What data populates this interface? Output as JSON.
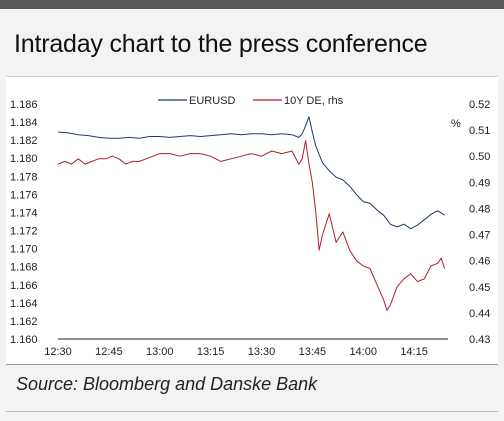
{
  "title": "Intraday chart to the press conference",
  "source": "Source: Bloomberg and Danske Bank",
  "chart_data": {
    "type": "line",
    "x_tick_labels": [
      "12:30",
      "12:45",
      "13:00",
      "13:15",
      "13:30",
      "13:45",
      "14:00",
      "14:15"
    ],
    "xlim": [
      "12:30",
      "14:25"
    ],
    "ylim_left": [
      1.16,
      1.186
    ],
    "y_left_ticks": [
      "1.186",
      "1.184",
      "1.182",
      "1.180",
      "1.178",
      "1.176",
      "1.174",
      "1.172",
      "1.170",
      "1.168",
      "1.166",
      "1.164",
      "1.162",
      "1.160"
    ],
    "ylim_right": [
      0.43,
      0.52
    ],
    "y_right_ticks": [
      "0.52",
      "0.51",
      "0.50",
      "0.49",
      "0.48",
      "0.47",
      "0.46",
      "0.45",
      "0.44",
      "0.43"
    ],
    "y_right_unit": "%",
    "legend_position": "top",
    "grid": false,
    "series": [
      {
        "name": "EURUSD",
        "axis": "left",
        "color": "#1f3b63",
        "points": [
          [
            "12:30",
            1.1829
          ],
          [
            "12:33",
            1.1828
          ],
          [
            "12:36",
            1.1826
          ],
          [
            "12:39",
            1.1825
          ],
          [
            "12:42",
            1.1823
          ],
          [
            "12:45",
            1.1822
          ],
          [
            "12:48",
            1.1822
          ],
          [
            "12:51",
            1.1823
          ],
          [
            "12:54",
            1.1822
          ],
          [
            "12:57",
            1.1824
          ],
          [
            "13:00",
            1.1824
          ],
          [
            "13:03",
            1.1823
          ],
          [
            "13:06",
            1.1824
          ],
          [
            "13:09",
            1.1825
          ],
          [
            "13:12",
            1.1824
          ],
          [
            "13:15",
            1.1825
          ],
          [
            "13:18",
            1.1826
          ],
          [
            "13:21",
            1.1827
          ],
          [
            "13:24",
            1.1826
          ],
          [
            "13:27",
            1.1827
          ],
          [
            "13:30",
            1.1827
          ],
          [
            "13:33",
            1.1826
          ],
          [
            "13:36",
            1.1827
          ],
          [
            "13:39",
            1.1826
          ],
          [
            "13:41",
            1.1823
          ],
          [
            "13:42",
            1.1827
          ],
          [
            "13:43",
            1.1836
          ],
          [
            "13:44",
            1.1846
          ],
          [
            "13:45",
            1.1829
          ],
          [
            "13:46",
            1.1814
          ],
          [
            "13:47",
            1.1804
          ],
          [
            "13:48",
            1.1795
          ],
          [
            "13:50",
            1.1786
          ],
          [
            "13:52",
            1.1779
          ],
          [
            "13:54",
            1.1776
          ],
          [
            "13:56",
            1.1769
          ],
          [
            "13:58",
            1.176
          ],
          [
            "14:00",
            1.1752
          ],
          [
            "14:02",
            1.175
          ],
          [
            "14:04",
            1.1743
          ],
          [
            "14:06",
            1.1737
          ],
          [
            "14:08",
            1.1727
          ],
          [
            "14:10",
            1.1724
          ],
          [
            "14:12",
            1.1727
          ],
          [
            "14:14",
            1.1722
          ],
          [
            "14:16",
            1.1726
          ],
          [
            "14:18",
            1.1732
          ],
          [
            "14:20",
            1.1738
          ],
          [
            "14:22",
            1.1742
          ],
          [
            "14:24",
            1.1737
          ]
        ]
      },
      {
        "name": "10Y DE, rhs",
        "axis": "right",
        "color": "#b21e2b",
        "points": [
          [
            "12:30",
            0.497
          ],
          [
            "12:32",
            0.498
          ],
          [
            "12:34",
            0.497
          ],
          [
            "12:36",
            0.499
          ],
          [
            "12:38",
            0.497
          ],
          [
            "12:40",
            0.498
          ],
          [
            "12:42",
            0.499
          ],
          [
            "12:44",
            0.499
          ],
          [
            "12:46",
            0.5
          ],
          [
            "12:48",
            0.499
          ],
          [
            "12:50",
            0.497
          ],
          [
            "12:52",
            0.498
          ],
          [
            "12:54",
            0.498
          ],
          [
            "12:56",
            0.499
          ],
          [
            "12:58",
            0.5
          ],
          [
            "13:00",
            0.501
          ],
          [
            "13:03",
            0.501
          ],
          [
            "13:06",
            0.5
          ],
          [
            "13:09",
            0.501
          ],
          [
            "13:12",
            0.501
          ],
          [
            "13:15",
            0.5
          ],
          [
            "13:18",
            0.498
          ],
          [
            "13:21",
            0.499
          ],
          [
            "13:24",
            0.5
          ],
          [
            "13:27",
            0.501
          ],
          [
            "13:30",
            0.5
          ],
          [
            "13:33",
            0.502
          ],
          [
            "13:36",
            0.501
          ],
          [
            "13:39",
            0.502
          ],
          [
            "13:41",
            0.497
          ],
          [
            "13:42",
            0.499
          ],
          [
            "13:43",
            0.506
          ],
          [
            "13:44",
            0.497
          ],
          [
            "13:45",
            0.49
          ],
          [
            "13:46",
            0.479
          ],
          [
            "13:47",
            0.464
          ],
          [
            "13:48",
            0.47
          ],
          [
            "13:50",
            0.478
          ],
          [
            "13:52",
            0.467
          ],
          [
            "13:54",
            0.471
          ],
          [
            "13:56",
            0.464
          ],
          [
            "13:58",
            0.46
          ],
          [
            "14:00",
            0.458
          ],
          [
            "14:02",
            0.457
          ],
          [
            "14:04",
            0.451
          ],
          [
            "14:06",
            0.445
          ],
          [
            "14:07",
            0.441
          ],
          [
            "14:08",
            0.443
          ],
          [
            "14:10",
            0.45
          ],
          [
            "14:12",
            0.453
          ],
          [
            "14:14",
            0.455
          ],
          [
            "14:16",
            0.452
          ],
          [
            "14:18",
            0.453
          ],
          [
            "14:20",
            0.458
          ],
          [
            "14:22",
            0.459
          ],
          [
            "14:23",
            0.461
          ],
          [
            "14:24",
            0.457
          ]
        ]
      }
    ]
  }
}
